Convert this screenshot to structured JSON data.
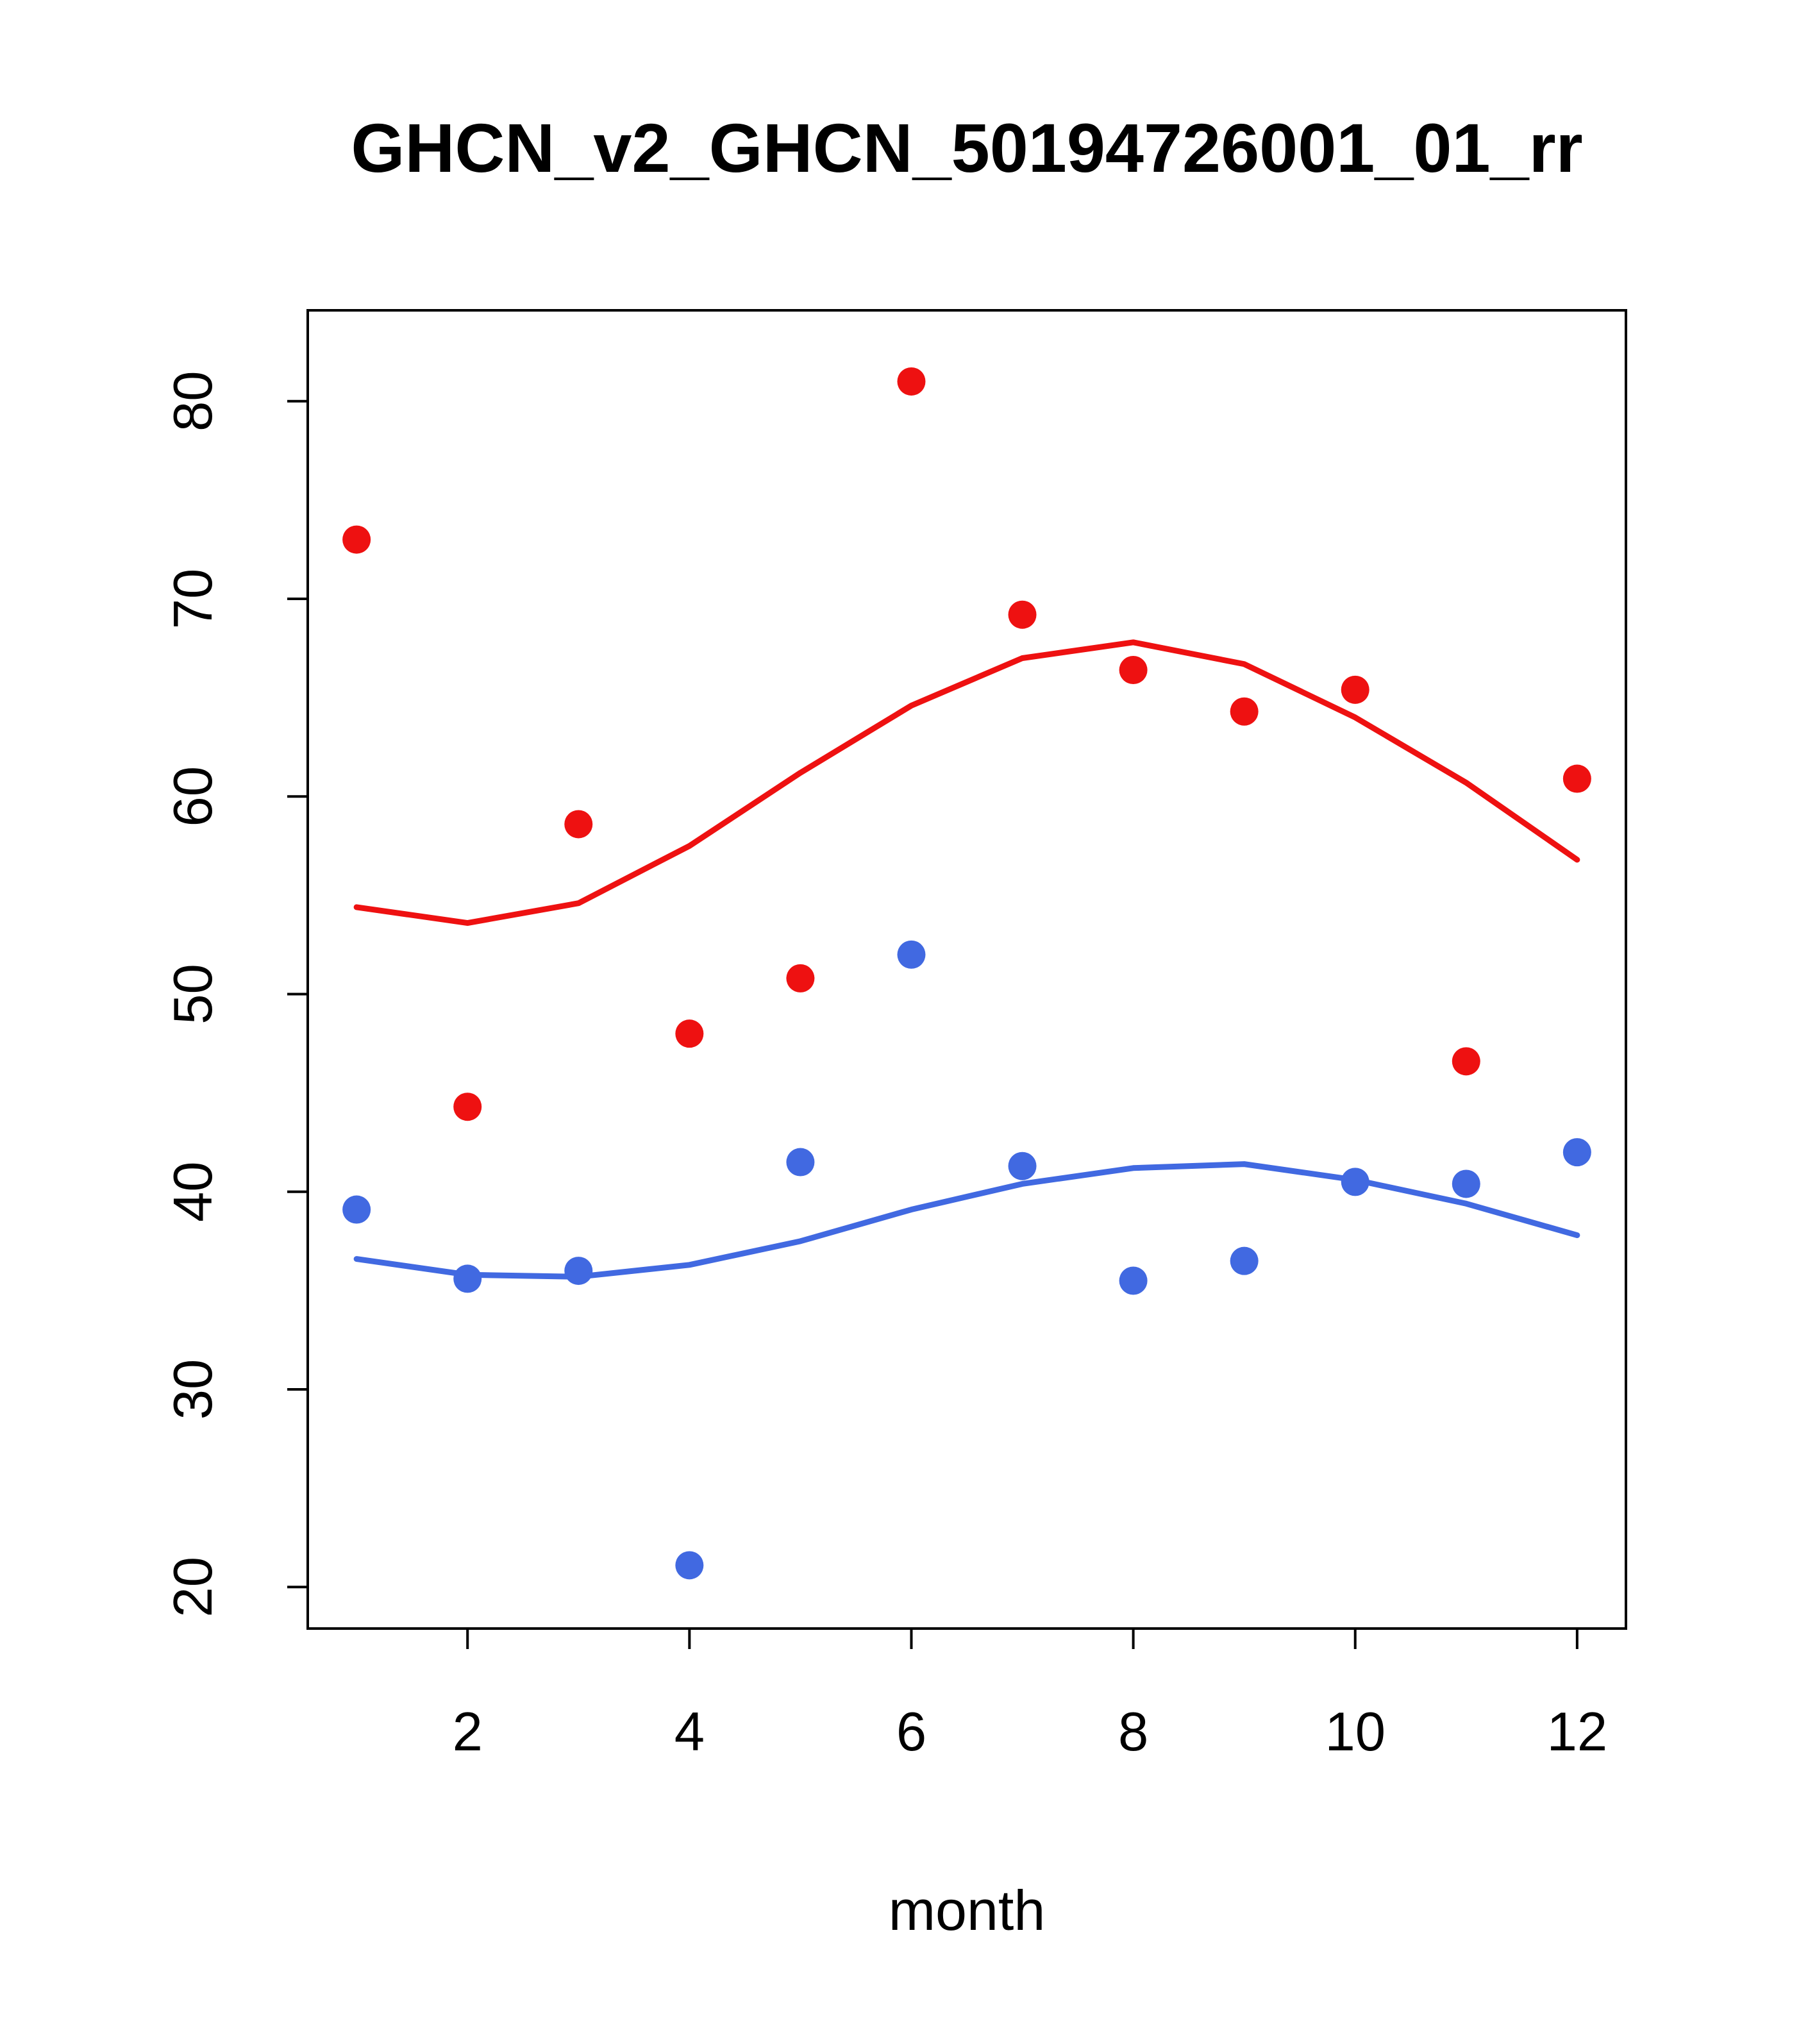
{
  "page": {
    "background": "#ffffff"
  },
  "chart_data": {
    "type": "scatter",
    "title": "GHCN_v2_GHCN_50194726001_01_rr",
    "xlabel": "month",
    "ylabel": "",
    "xlim": [
      0.56,
      12.44
    ],
    "ylim": [
      17.9,
      84.6
    ],
    "xticks": [
      2,
      4,
      6,
      8,
      10,
      12
    ],
    "yticks": [
      20,
      30,
      40,
      50,
      60,
      70,
      80
    ],
    "grid": "off",
    "legend": "none",
    "colors": {
      "red": "#ee1111",
      "blue": "#4169e1",
      "frame": "#000000",
      "text": "#000000"
    },
    "x": [
      1,
      2,
      3,
      4,
      5,
      6,
      7,
      8,
      9,
      10,
      11,
      12
    ],
    "series": [
      {
        "name": "upper-smooth-line",
        "kind": "line",
        "color": "#ee1111",
        "values": [
          54.4,
          53.6,
          54.6,
          57.5,
          61.2,
          64.6,
          67.0,
          67.8,
          66.7,
          64.0,
          60.7,
          56.8
        ]
      },
      {
        "name": "lower-smooth-line",
        "kind": "line",
        "color": "#4169e1",
        "values": [
          36.6,
          35.8,
          35.7,
          36.3,
          37.5,
          39.1,
          40.4,
          41.2,
          41.4,
          40.6,
          39.4,
          37.8
        ]
      },
      {
        "name": "upper-points",
        "kind": "points",
        "color": "#ee1111",
        "values": [
          73.0,
          44.3,
          58.6,
          48.0,
          50.8,
          81.0,
          69.2,
          66.4,
          64.3,
          65.4,
          46.6,
          60.9
        ]
      },
      {
        "name": "lower-points",
        "kind": "points",
        "color": "#4169e1",
        "values": [
          39.1,
          35.6,
          36.0,
          21.1,
          41.5,
          52.0,
          41.3,
          35.5,
          36.5,
          40.5,
          40.4,
          42.0
        ]
      }
    ]
  }
}
